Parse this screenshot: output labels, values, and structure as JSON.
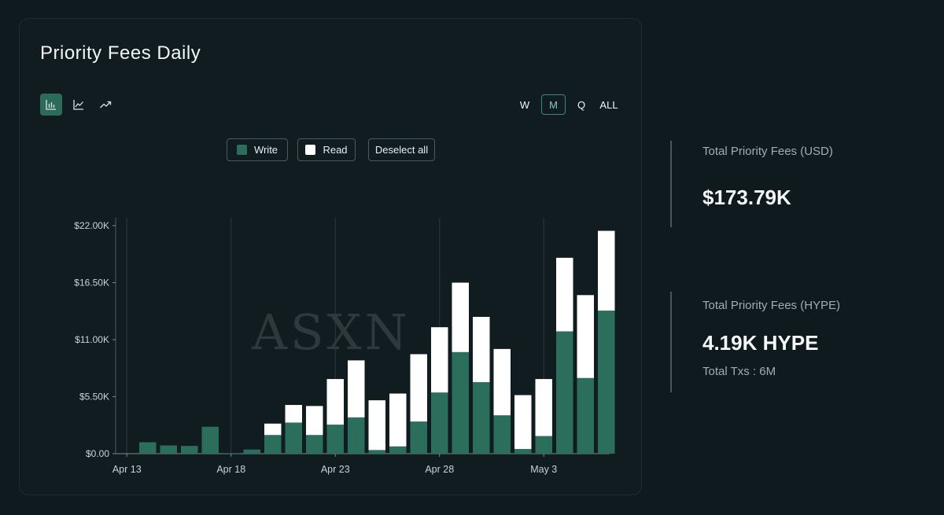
{
  "card": {
    "title": "Priority Fees Daily",
    "chart_types": [
      {
        "name": "bar-chart-icon",
        "active": true
      },
      {
        "name": "line-chart-icon",
        "active": false
      },
      {
        "name": "trend-chart-icon",
        "active": false
      }
    ],
    "periods": [
      "W",
      "M",
      "Q",
      "ALL"
    ],
    "active_period": "M",
    "legend": {
      "write_label": "Write",
      "read_label": "Read",
      "deselect_label": "Deselect all"
    },
    "watermark": "ASXN"
  },
  "colors": {
    "write": "#2a6e5b",
    "read": "#ffffff",
    "accent": "#3d8a73",
    "background": "#0f1a1e",
    "card": "#111c20"
  },
  "stats": {
    "usd_label": "Total Priority Fees (USD)",
    "usd_value": "$173.79K",
    "hype_label": "Total Priority Fees (HYPE)",
    "hype_value": "4.19K HYPE",
    "txs_label": "Total Txs : 6M"
  },
  "chart_data": {
    "type": "bar",
    "stacked": true,
    "title": "Priority Fees Daily",
    "xlabel": "",
    "ylabel": "",
    "ylim": [
      0,
      22000
    ],
    "yticks": [
      0,
      5500,
      11000,
      16500,
      22000
    ],
    "ytick_labels": [
      "$0.00",
      "$5.50K",
      "$11.00K",
      "$16.50K",
      "$22.00K"
    ],
    "xtick_labels": [
      "Apr 13",
      "Apr 18",
      "Apr 23",
      "Apr 28",
      "May 3"
    ],
    "xtick_indices": [
      0,
      5,
      10,
      15,
      20
    ],
    "grid": "vertical",
    "legend_position": "top-center",
    "categories": [
      "Apr 13",
      "Apr 14",
      "Apr 15",
      "Apr 16",
      "Apr 17",
      "Apr 18",
      "Apr 19",
      "Apr 20",
      "Apr 21",
      "Apr 22",
      "Apr 23",
      "Apr 24",
      "Apr 25",
      "Apr 26",
      "Apr 27",
      "Apr 28",
      "Apr 29",
      "Apr 30",
      "May 1",
      "May 2",
      "May 3",
      "May 4",
      "May 5",
      "May 6"
    ],
    "series": [
      {
        "name": "Write",
        "values": [
          0,
          1100,
          800,
          750,
          2600,
          50,
          400,
          1800,
          3000,
          1800,
          2800,
          3500,
          350,
          700,
          3100,
          5900,
          9800,
          6900,
          3700,
          450,
          1700,
          11800,
          7300,
          13800
        ]
      },
      {
        "name": "Read",
        "values": [
          0,
          0,
          0,
          0,
          0,
          0,
          0,
          1100,
          1700,
          2800,
          4400,
          5500,
          4800,
          5100,
          6500,
          6300,
          6700,
          6300,
          6400,
          5200,
          5500,
          7100,
          8000,
          7700
        ]
      }
    ]
  }
}
